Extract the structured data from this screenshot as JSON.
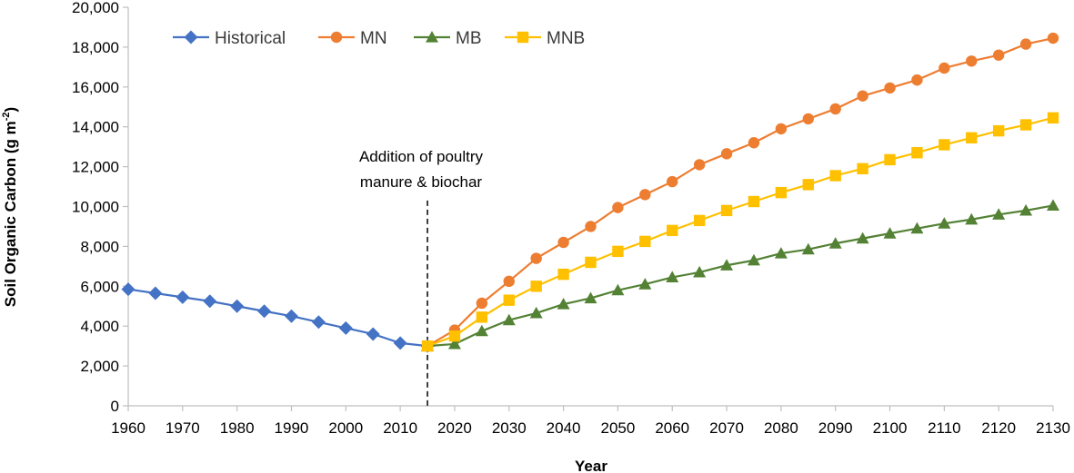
{
  "chart_data": {
    "type": "line",
    "title": "",
    "xlabel": "Year",
    "ylabel": "Soil Organic Carbon (g m",
    "ylabel_sup": "-2",
    "ylabel_close": ")",
    "xlim": [
      1960,
      2130
    ],
    "ylim": [
      0,
      20000
    ],
    "x_ticks": [
      1960,
      1970,
      1980,
      1990,
      2000,
      2010,
      2020,
      2030,
      2040,
      2050,
      2060,
      2070,
      2080,
      2090,
      2100,
      2110,
      2120,
      2130
    ],
    "x_tick_labels": [
      "1960",
      "1970",
      "1980",
      "1990",
      "2000",
      "2010",
      "2020",
      "2030",
      "2040",
      "2050",
      "2060",
      "2070",
      "2080",
      "2090",
      "2100",
      "2110",
      "2120",
      "2130"
    ],
    "y_ticks": [
      0,
      2000,
      4000,
      6000,
      8000,
      10000,
      12000,
      14000,
      16000,
      18000,
      20000
    ],
    "y_tick_labels": [
      "0",
      "2,000",
      "4,000",
      "6,000",
      "8,000",
      "10,000",
      "12,000",
      "14,000",
      "16,000",
      "18,000",
      "20,000"
    ],
    "grid": false,
    "legend_position": "top-left",
    "annotation": {
      "lines": [
        "Addition of poultry",
        "manure & biochar"
      ],
      "x": 2015
    },
    "series": [
      {
        "name": "Historical",
        "color": "#4472C4",
        "marker": "diamond",
        "x": [
          1960,
          1965,
          1970,
          1975,
          1980,
          1985,
          1990,
          1995,
          2000,
          2005,
          2010,
          2015
        ],
        "values": [
          5850,
          5650,
          5450,
          5250,
          5000,
          4750,
          4500,
          4200,
          3900,
          3600,
          3150,
          3000
        ]
      },
      {
        "name": "MN",
        "color": "#ED7D31",
        "marker": "circle",
        "x": [
          2015,
          2020,
          2025,
          2030,
          2035,
          2040,
          2045,
          2050,
          2055,
          2060,
          2065,
          2070,
          2075,
          2080,
          2085,
          2090,
          2095,
          2100,
          2105,
          2110,
          2115,
          2120,
          2125,
          2130
        ],
        "values": [
          3000,
          3800,
          5150,
          6250,
          7400,
          8200,
          9000,
          9950,
          10600,
          11250,
          12100,
          12650,
          13200,
          13900,
          14400,
          14900,
          15550,
          15950,
          16350,
          16950,
          17300,
          17600,
          18150,
          18450
        ]
      },
      {
        "name": "MB",
        "color": "#548235",
        "marker": "triangle",
        "x": [
          2015,
          2020,
          2025,
          2030,
          2035,
          2040,
          2045,
          2050,
          2055,
          2060,
          2065,
          2070,
          2075,
          2080,
          2085,
          2090,
          2095,
          2100,
          2105,
          2110,
          2115,
          2120,
          2125,
          2130
        ],
        "values": [
          3000,
          3100,
          3750,
          4300,
          4650,
          5100,
          5400,
          5800,
          6100,
          6450,
          6700,
          7050,
          7300,
          7650,
          7850,
          8150,
          8400,
          8650,
          8900,
          9150,
          9350,
          9600,
          9800,
          10050
        ]
      },
      {
        "name": "MNB",
        "color": "#FFC000",
        "marker": "square",
        "x": [
          2015,
          2020,
          2025,
          2030,
          2035,
          2040,
          2045,
          2050,
          2055,
          2060,
          2065,
          2070,
          2075,
          2080,
          2085,
          2090,
          2095,
          2100,
          2105,
          2110,
          2115,
          2120,
          2125,
          2130
        ],
        "values": [
          3000,
          3500,
          4450,
          5300,
          6000,
          6600,
          7200,
          7750,
          8250,
          8800,
          9300,
          9800,
          10250,
          10700,
          11100,
          11550,
          11900,
          12350,
          12700,
          13100,
          13450,
          13800,
          14100,
          14450
        ]
      }
    ]
  }
}
